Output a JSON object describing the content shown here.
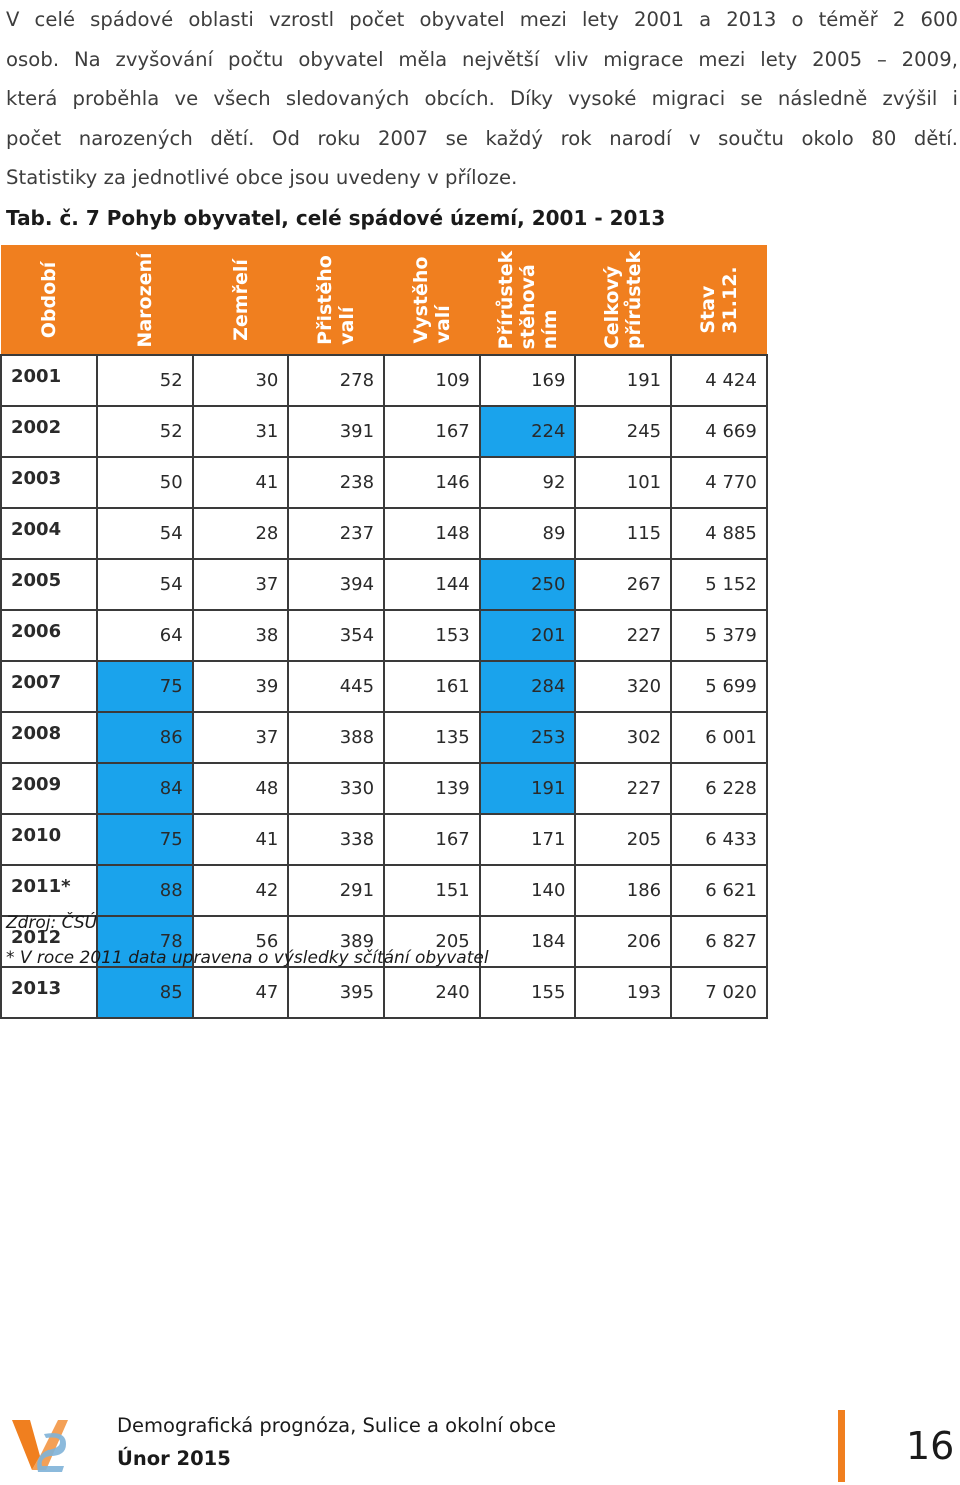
{
  "paragraph": {
    "lines": [
      "V celé spádové oblasti vzrostl počet obyvatel mezi lety 2001 a 2013 o téměř 2 600",
      "osob. Na zvyšování počtu obyvatel měla největší vliv migrace mezi lety 2005 – 2009,",
      "která proběhla ve všech sledovaných obcích. Díky vysoké migraci se následně zvýšil i",
      "počet narozených dětí. Od roku 2007 se každý rok narodí v součtu okolo 80 dětí.",
      "Statistiky za jednotlivé obce jsou uvedeny v příloze."
    ]
  },
  "table_caption": "Tab. č. 7 Pohyb obyvatel, celé spádové území, 2001 - 2013",
  "table": {
    "headers": [
      "Období",
      "Narození",
      "Zemřelí",
      "Přistěho\nvalí",
      "Vystěho\nvalí",
      "Přírůstek\nstěhová\nním",
      "Celkový\npřírůstek",
      "Stav\n31.12."
    ],
    "rows": [
      {
        "year": "2001",
        "values": [
          "52",
          "30",
          "278",
          "109",
          "169",
          "191",
          "4 424"
        ]
      },
      {
        "year": "2002",
        "values": [
          "52",
          "31",
          "391",
          "167",
          "224",
          "245",
          "4 669"
        ]
      },
      {
        "year": "2003",
        "values": [
          "50",
          "41",
          "238",
          "146",
          "92",
          "101",
          "4 770"
        ]
      },
      {
        "year": "2004",
        "values": [
          "54",
          "28",
          "237",
          "148",
          "89",
          "115",
          "4 885"
        ]
      },
      {
        "year": "2005",
        "values": [
          "54",
          "37",
          "394",
          "144",
          "250",
          "267",
          "5 152"
        ]
      },
      {
        "year": "2006",
        "values": [
          "64",
          "38",
          "354",
          "153",
          "201",
          "227",
          "5 379"
        ]
      },
      {
        "year": "2007",
        "values": [
          "75",
          "39",
          "445",
          "161",
          "284",
          "320",
          "5 699"
        ]
      },
      {
        "year": "2008",
        "values": [
          "86",
          "37",
          "388",
          "135",
          "253",
          "302",
          "6 001"
        ]
      },
      {
        "year": "2009",
        "values": [
          "84",
          "48",
          "330",
          "139",
          "191",
          "227",
          "6 228"
        ]
      },
      {
        "year": "2010",
        "values": [
          "75",
          "41",
          "338",
          "167",
          "171",
          "205",
          "6 433"
        ]
      },
      {
        "year": "2011*",
        "values": [
          "88",
          "42",
          "291",
          "151",
          "140",
          "186",
          "6 621"
        ]
      },
      {
        "year": "2012",
        "values": [
          "78",
          "56",
          "389",
          "205",
          "184",
          "206",
          "6 827"
        ]
      },
      {
        "year": "2013",
        "values": [
          "85",
          "47",
          "395",
          "240",
          "155",
          "193",
          "7 020"
        ]
      }
    ],
    "highlighted": {
      "Narození": [
        "2007",
        "2008",
        "2009",
        "2010",
        "2011*",
        "2012",
        "2013"
      ],
      "Přírůstek stěhováním": [
        "2002",
        "2005",
        "2006",
        "2007",
        "2008",
        "2009"
      ]
    },
    "colors": {
      "header": "#f07f1f",
      "highlight": "#1aa3ec"
    }
  },
  "source": "Zdroj: ČSÚ",
  "note": "* V roce 2011 data upravena o výsledky sčítání obyvatel",
  "footer": {
    "title": "Demografická prognóza, Sulice a okolní obce",
    "date": "Únor 2015",
    "page_number": "16",
    "accent": "#f07f1f",
    "logo_icon": "vs-logo-icon"
  }
}
